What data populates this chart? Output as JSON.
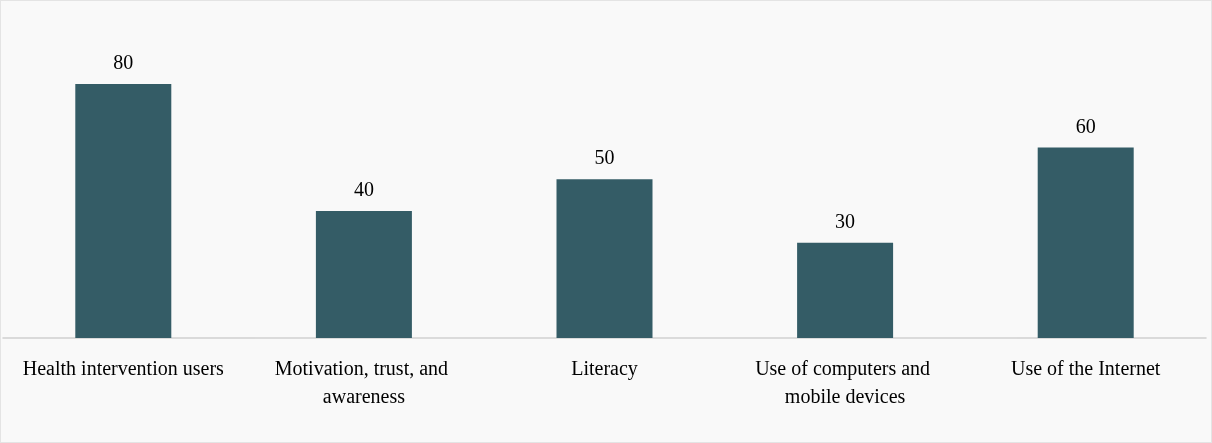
{
  "chart_data": {
    "type": "bar",
    "categories": [
      "Health intervention users",
      "Motivation, trust, and awareness",
      "Literacy",
      "Use of computers and mobile devices",
      "Use of the Internet"
    ],
    "values": [
      80,
      40,
      50,
      30,
      60
    ],
    "color": "#345c66",
    "data_labels": true
  }
}
